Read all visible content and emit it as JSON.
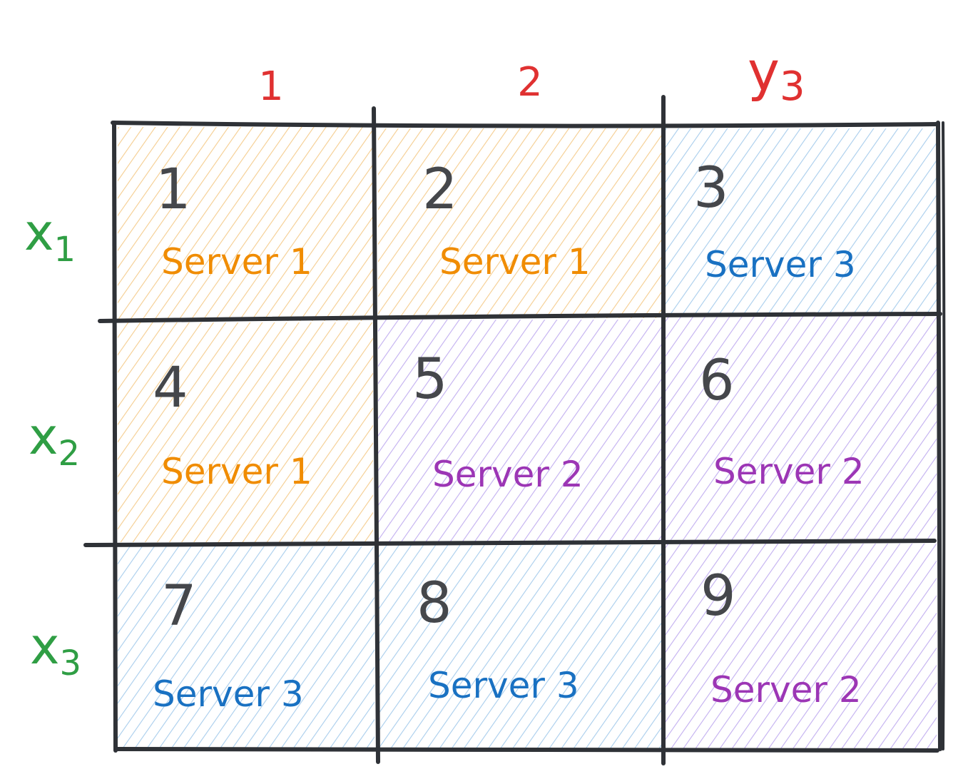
{
  "column_labels": {
    "col1": "1",
    "col2": "2",
    "col3": {
      "base": "y",
      "sub": "3"
    }
  },
  "row_labels": [
    {
      "base": "x",
      "sub": "1"
    },
    {
      "base": "x",
      "sub": "2"
    },
    {
      "base": "x",
      "sub": "3"
    }
  ],
  "cells": [
    {
      "number": "1",
      "server": "Server 1",
      "group": "s1"
    },
    {
      "number": "2",
      "server": "Server 1",
      "group": "s1"
    },
    {
      "number": "3",
      "server": "Server 3",
      "group": "s3"
    },
    {
      "number": "4",
      "server": "Server 1",
      "group": "s1"
    },
    {
      "number": "5",
      "server": "Server 2",
      "group": "s2"
    },
    {
      "number": "6",
      "server": "Server 2",
      "group": "s2"
    },
    {
      "number": "7",
      "server": "Server 3",
      "group": "s3"
    },
    {
      "number": "8",
      "server": "Server 3",
      "group": "s3"
    },
    {
      "number": "9",
      "server": "Server 2",
      "group": "s2"
    }
  ],
  "colors": {
    "grid": "#2f3237",
    "cell_number": "#45474b",
    "column_label": "#e03131",
    "row_label": "#2f9e44",
    "s1_text": "#f08c00",
    "s1_hatch": "#f5cd8f",
    "s2_text": "#9c36b5",
    "s2_hatch": "#c2aff0",
    "s3_text": "#1971c2",
    "s3_hatch": "#a8cdec"
  }
}
